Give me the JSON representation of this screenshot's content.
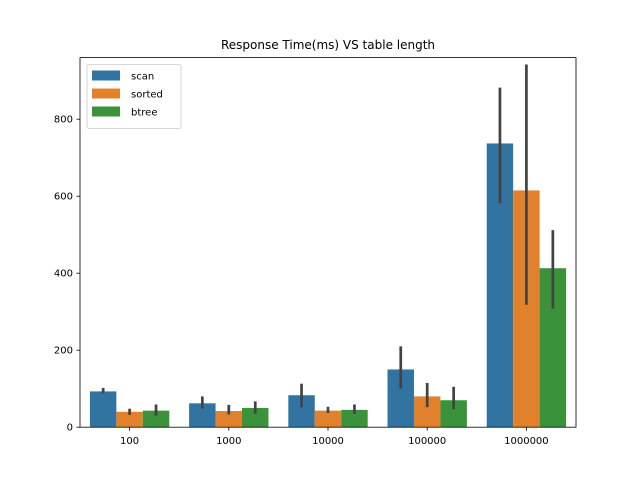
{
  "chart_data": {
    "type": "bar",
    "title": "Response Time(ms) VS table length",
    "xlabel": "",
    "ylabel": "",
    "categories": [
      "100",
      "1000",
      "10000",
      "100000",
      "1000000"
    ],
    "ylim": [
      0,
      960
    ],
    "yticks": [
      0,
      200,
      400,
      600,
      800
    ],
    "legend_position": "top-left",
    "series": [
      {
        "name": "scan",
        "color": "#3274a1",
        "values": [
          93,
          62,
          83,
          150,
          737
        ],
        "err_low": [
          88,
          48,
          52,
          100,
          582
        ],
        "err_high": [
          102,
          80,
          113,
          210,
          882
        ]
      },
      {
        "name": "sorted",
        "color": "#e1812c",
        "values": [
          40,
          42,
          43,
          80,
          615
        ],
        "err_low": [
          32,
          33,
          37,
          52,
          318
        ],
        "err_high": [
          48,
          58,
          53,
          115,
          942
        ]
      },
      {
        "name": "btree",
        "color": "#3a923a",
        "values": [
          43,
          50,
          45,
          70,
          413
        ],
        "err_low": [
          30,
          35,
          35,
          47,
          308
        ],
        "err_high": [
          59,
          67,
          59,
          105,
          512
        ]
      }
    ]
  }
}
